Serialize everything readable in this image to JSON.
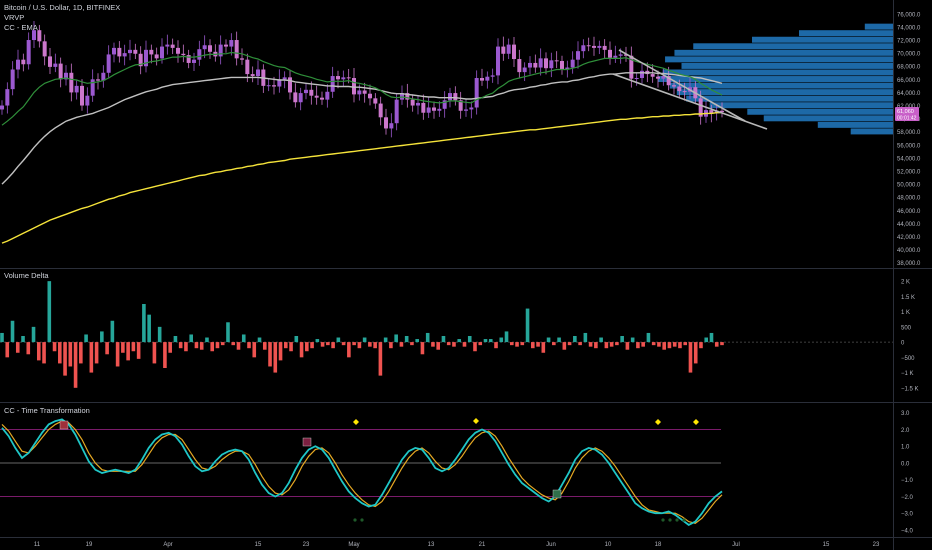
{
  "header": {
    "symbol": "Bitcoin / U.S. Dollar, 1D, BITFINEX",
    "ind1": "VRVP",
    "ind2": "CC - EMA"
  },
  "price_badge": {
    "line1": "61,060",
    "line2": "00:01:42"
  },
  "panes": {
    "volume_delta_title": "Volume Delta",
    "transformation_title": "CC - Time Transformation"
  },
  "colors": {
    "up": "#26a69a",
    "down": "#ef5350",
    "candle_up": "#9b59d0",
    "candle_down": "#cc77cc",
    "ema_fast": "#2f8f3a",
    "ema_mid": "#c0c0c0",
    "ema_slow": "#f5e33a",
    "profile": "#1f6fb0",
    "signal_line": "#e5a823",
    "main_line": "#1fc7c7",
    "marker": "#ffe600",
    "badge": "#c85fc8"
  },
  "x_axis": {
    "ticks": [
      "11",
      "19",
      "Apr",
      "15",
      "23",
      "May",
      "13",
      "21",
      "Jun",
      "10",
      "18",
      "Jul",
      "15",
      "23"
    ]
  },
  "chart_data": [
    {
      "type": "line",
      "title": "Bitcoin / U.S. Dollar, 1D, BITFINEX",
      "ylabel": "",
      "ylim": [
        37500,
        77500
      ],
      "y_ticks": [
        "76,000.0",
        "74,000.0",
        "72,000.0",
        "70,000.0",
        "68,000.0",
        "66,000.0",
        "64,000.0",
        "62,000.0",
        "60,000.0",
        "58,000.0",
        "56,000.0",
        "54,000.0",
        "52,000.0",
        "50,000.0",
        "48,000.0",
        "46,000.0",
        "44,000.0",
        "42,000.0",
        "40,000.0",
        "38,000.0"
      ],
      "close": [
        62000,
        64500,
        67500,
        69000,
        68300,
        72000,
        73500,
        71800,
        69500,
        67900,
        68400,
        66000,
        67000,
        64000,
        65000,
        62000,
        63500,
        66000,
        65800,
        67000,
        69800,
        70800,
        69500,
        70000,
        70500,
        69900,
        68000,
        70500,
        69800,
        69200,
        71000,
        71300,
        70800,
        69900,
        69700,
        68500,
        69000,
        70600,
        71200,
        70200,
        69500,
        71300,
        71000,
        72000,
        69200,
        69000,
        66800,
        66500,
        67500,
        65000,
        65100,
        64900,
        66000,
        66300,
        64000,
        62500,
        63900,
        64400,
        63500,
        63200,
        62900,
        64100,
        66500,
        66000,
        66300,
        66200,
        63700,
        64300,
        63800,
        63100,
        62300,
        60200,
        58500,
        59300,
        62900,
        63900,
        62900,
        62000,
        62400,
        60900,
        61700,
        61200,
        61500,
        62800,
        63900,
        62800,
        61200,
        61400,
        61700,
        66200,
        65800,
        66400,
        66600,
        71000,
        69900,
        71300,
        69100,
        67100,
        67800,
        68500,
        67800,
        69200,
        67700,
        68900,
        68800,
        67500,
        67800,
        69000,
        70300,
        71200,
        71100,
        70800,
        71100,
        70500,
        69300,
        69600,
        69800,
        69600,
        66100,
        66200,
        67300,
        66800,
        66400,
        66100,
        66500,
        65100,
        64900,
        64200,
        64100,
        64800,
        63100,
        60300,
        61300,
        60800,
        61200,
        61000
      ],
      "ema_fast": [
        59000,
        59600,
        60300,
        61100,
        61800,
        62900,
        64000,
        64800,
        65400,
        65700,
        66000,
        66100,
        66200,
        66000,
        65900,
        65600,
        65400,
        65500,
        65600,
        65800,
        66200,
        66700,
        67100,
        67500,
        67900,
        68200,
        68300,
        68500,
        68700,
        68800,
        69000,
        69200,
        69400,
        69400,
        69500,
        69400,
        69400,
        69500,
        69700,
        69800,
        69800,
        69900,
        69900,
        70100,
        70000,
        69900,
        69600,
        69300,
        69100,
        68700,
        68400,
        68100,
        67900,
        67800,
        67400,
        67000,
        66700,
        66500,
        66300,
        66000,
        65800,
        65600,
        65700,
        65700,
        65700,
        65800,
        65500,
        65400,
        65200,
        65000,
        64700,
        64300,
        63700,
        63300,
        63200,
        63300,
        63200,
        63000,
        62900,
        62700,
        62600,
        62500,
        62400,
        62500,
        62700,
        62700,
        62600,
        62500,
        62400,
        62900,
        63200,
        63600,
        63900,
        64600,
        65100,
        65700,
        66000,
        66200,
        66400,
        66600,
        66800,
        67000,
        67100,
        67300,
        67500,
        67500,
        67500,
        67700,
        67900,
        68300,
        68600,
        68800,
        69000,
        69200,
        69200,
        69200,
        69200,
        69300,
        69000,
        68700,
        68500,
        68300,
        68100,
        67900,
        67700,
        67400,
        67100,
        66800,
        66600,
        66400,
        66000,
        65400,
        64900,
        64400,
        64000,
        63600
      ],
      "ema_mid": [
        50000,
        50800,
        51700,
        52700,
        53600,
        54600,
        55600,
        56500,
        57300,
        58000,
        58600,
        59100,
        59600,
        59900,
        60200,
        60400,
        60600,
        60800,
        61100,
        61400,
        61700,
        62100,
        62500,
        62900,
        63200,
        63500,
        63800,
        64100,
        64300,
        64500,
        64800,
        65000,
        65200,
        65300,
        65400,
        65500,
        65600,
        65700,
        65800,
        65900,
        66000,
        66100,
        66200,
        66300,
        66300,
        66300,
        66300,
        66300,
        66300,
        66200,
        66100,
        66000,
        65900,
        65900,
        65800,
        65600,
        65500,
        65400,
        65300,
        65200,
        65100,
        65000,
        65000,
        64900,
        64900,
        64900,
        64800,
        64800,
        64700,
        64600,
        64500,
        64300,
        64100,
        63900,
        63800,
        63800,
        63700,
        63600,
        63500,
        63400,
        63300,
        63300,
        63200,
        63200,
        63200,
        63200,
        63100,
        63000,
        63000,
        63100,
        63200,
        63300,
        63400,
        63700,
        63900,
        64200,
        64400,
        64500,
        64600,
        64800,
        64900,
        65100,
        65200,
        65400,
        65500,
        65600,
        65600,
        65800,
        65900,
        66100,
        66300,
        66400,
        66600,
        66700,
        66800,
        66800,
        66900,
        67000,
        67000,
        67000,
        67000,
        67000,
        67000,
        66900,
        66900,
        66800,
        66700,
        66600,
        66500,
        66400,
        66300,
        66200,
        66000,
        65800,
        65600,
        65400
      ],
      "ema_slow": [
        41000,
        41300,
        41700,
        42100,
        42500,
        42900,
        43300,
        43700,
        44100,
        44500,
        44800,
        45100,
        45400,
        45700,
        46000,
        46300,
        46500,
        46800,
        47100,
        47400,
        47700,
        47900,
        48200,
        48400,
        48700,
        48900,
        49100,
        49300,
        49500,
        49700,
        49900,
        50100,
        50300,
        50500,
        50700,
        50900,
        51100,
        51300,
        51400,
        51600,
        51800,
        51900,
        52100,
        52200,
        52400,
        52500,
        52700,
        52800,
        53000,
        53100,
        53300,
        53400,
        53500,
        53600,
        53800,
        53900,
        54000,
        54100,
        54200,
        54300,
        54400,
        54500,
        54600,
        54700,
        54800,
        54900,
        55000,
        55100,
        55200,
        55300,
        55400,
        55500,
        55600,
        55700,
        55800,
        55900,
        56000,
        56100,
        56200,
        56300,
        56400,
        56500,
        56600,
        56700,
        56800,
        56900,
        57000,
        57100,
        57200,
        57300,
        57400,
        57500,
        57600,
        57700,
        57800,
        57900,
        58000,
        58100,
        58200,
        58300,
        58300,
        58400,
        58500,
        58600,
        58700,
        58800,
        58900,
        59000,
        59100,
        59200,
        59300,
        59400,
        59500,
        59600,
        59700,
        59800,
        59900,
        59900,
        60000,
        60100,
        60100,
        60200,
        60300,
        60300,
        60400,
        60400,
        60500,
        60500,
        60600,
        60600,
        60700,
        60700,
        60800,
        60800,
        60900,
        60900
      ],
      "volume_profile": [
        {
          "price": 58000,
          "volume": 0.18
        },
        {
          "price": 59000,
          "volume": 0.32
        },
        {
          "price": 60000,
          "volume": 0.55
        },
        {
          "price": 61000,
          "volume": 0.62
        },
        {
          "price": 62000,
          "volume": 0.78
        },
        {
          "price": 63000,
          "volume": 0.88
        },
        {
          "price": 64000,
          "volume": 0.92
        },
        {
          "price": 65000,
          "volume": 0.95
        },
        {
          "price": 66000,
          "volume": 1.0
        },
        {
          "price": 67000,
          "volume": 0.98
        },
        {
          "price": 68000,
          "volume": 0.9
        },
        {
          "price": 69000,
          "volume": 0.97
        },
        {
          "price": 70000,
          "volume": 0.93
        },
        {
          "price": 71000,
          "volume": 0.85
        },
        {
          "price": 72000,
          "volume": 0.6
        },
        {
          "price": 73000,
          "volume": 0.4
        },
        {
          "price": 74000,
          "volume": 0.12
        }
      ]
    },
    {
      "type": "bar",
      "title": "Volume Delta",
      "ylim": [
        -1900,
        2300
      ],
      "y_ticks": [
        "2 K",
        "1.5 K",
        "1 K",
        "500",
        "0",
        "−500",
        "−1 K",
        "−1.5 K"
      ],
      "values": [
        300,
        -500,
        700,
        -350,
        200,
        -400,
        500,
        -600,
        -700,
        2000,
        -300,
        -700,
        -1100,
        -800,
        -1500,
        -700,
        250,
        -1000,
        -700,
        350,
        -400,
        700,
        -800,
        -350,
        -600,
        -300,
        -550,
        1250,
        900,
        -700,
        500,
        -850,
        -350,
        200,
        -200,
        -300,
        250,
        -200,
        -250,
        150,
        -300,
        -200,
        -100,
        650,
        -100,
        -250,
        250,
        -200,
        -500,
        150,
        -250,
        -800,
        -1000,
        -600,
        -200,
        -300,
        200,
        -500,
        -300,
        -200,
        100,
        -150,
        -100,
        -200,
        150,
        -100,
        -500,
        -100,
        -200,
        150,
        -150,
        -200,
        -1100,
        150,
        -200,
        250,
        -150,
        200,
        -100,
        100,
        -400,
        300,
        -150,
        -250,
        200,
        -100,
        -150,
        100,
        -150,
        200,
        -300,
        -100,
        100,
        100,
        -200,
        150,
        350,
        -100,
        -150,
        -100,
        1100,
        -200,
        -150,
        -350,
        150,
        -100,
        150,
        -250,
        -100,
        200,
        -100,
        300,
        -150,
        -200,
        150,
        -200,
        -150,
        -100,
        200,
        -250,
        150,
        -200,
        -150,
        300,
        -100,
        -150,
        -250,
        -200,
        -150,
        -200,
        -100,
        -1000,
        -700,
        -200,
        150,
        300,
        -150,
        -100
      ],
      "zero_label": "0"
    },
    {
      "type": "line",
      "title": "CC - Time Transformation",
      "ylim": [
        -4.3,
        3.4
      ],
      "y_ticks": [
        "3.0",
        "2.0",
        "1.0",
        "0.0",
        "−1.0",
        "−2.0",
        "−3.0",
        "−4.0"
      ],
      "levels": [
        2,
        0,
        -2
      ],
      "main": [
        2.1,
        1.6,
        0.9,
        0.3,
        0.6,
        1.2,
        1.8,
        2.3,
        2.5,
        2.6,
        2.3,
        1.7,
        0.9,
        0.1,
        -0.4,
        -0.6,
        -0.5,
        -0.4,
        -0.5,
        -0.6,
        -0.4,
        0.2,
        0.9,
        1.4,
        1.7,
        1.8,
        1.6,
        1.1,
        0.4,
        -0.2,
        -0.5,
        -0.4,
        0.1,
        0.5,
        0.7,
        0.8,
        0.7,
        0.2,
        -0.6,
        -1.3,
        -1.8,
        -2.0,
        -1.8,
        -1.2,
        -0.4,
        0.3,
        0.8,
        1.0,
        0.8,
        0.3,
        -0.4,
        -1.1,
        -1.7,
        -2.1,
        -2.4,
        -2.6,
        -2.5,
        -1.9,
        -1.2,
        -0.5,
        0.2,
        0.7,
        0.9,
        0.8,
        0.3,
        -0.3,
        -0.5,
        -0.3,
        0.2,
        0.8,
        1.4,
        1.8,
        2.0,
        1.8,
        1.3,
        0.6,
        -0.1,
        -0.7,
        -1.2,
        -1.5,
        -1.8,
        -2.1,
        -2.3,
        -2.0,
        -1.3,
        -0.6,
        0.2,
        0.7,
        0.9,
        0.8,
        0.5,
        0.0,
        -0.6,
        -1.2,
        -1.8,
        -2.4,
        -2.7,
        -2.9,
        -3.0,
        -3.0,
        -2.9,
        -3.1,
        -3.4,
        -3.7,
        -3.5,
        -3.0,
        -2.4,
        -2.0,
        -1.7
      ],
      "signal": [
        2.3,
        1.9,
        1.3,
        0.7,
        0.6,
        1.0,
        1.5,
        2.0,
        2.3,
        2.5,
        2.4,
        2.0,
        1.4,
        0.6,
        0.0,
        -0.4,
        -0.5,
        -0.5,
        -0.5,
        -0.5,
        -0.5,
        -0.1,
        0.5,
        1.1,
        1.5,
        1.7,
        1.7,
        1.4,
        0.8,
        0.2,
        -0.3,
        -0.4,
        -0.2,
        0.2,
        0.5,
        0.7,
        0.7,
        0.5,
        -0.1,
        -0.8,
        -1.4,
        -1.8,
        -1.9,
        -1.6,
        -1.0,
        -0.2,
        0.4,
        0.8,
        0.9,
        0.6,
        0.0,
        -0.7,
        -1.3,
        -1.8,
        -2.2,
        -2.5,
        -2.6,
        -2.3,
        -1.7,
        -1.0,
        -0.3,
        0.3,
        0.7,
        0.9,
        0.6,
        0.1,
        -0.3,
        -0.4,
        -0.1,
        0.4,
        1.0,
        1.5,
        1.8,
        1.9,
        1.6,
        1.0,
        0.3,
        -0.3,
        -0.9,
        -1.3,
        -1.6,
        -1.9,
        -2.1,
        -2.2,
        -1.8,
        -1.1,
        -0.3,
        0.3,
        0.7,
        0.9,
        0.7,
        0.3,
        -0.2,
        -0.8,
        -1.4,
        -2.0,
        -2.5,
        -2.8,
        -2.9,
        -3.0,
        -3.0,
        -3.0,
        -3.2,
        -3.5,
        -3.6,
        -3.3,
        -2.8,
        -2.3,
        -1.9
      ]
    }
  ]
}
